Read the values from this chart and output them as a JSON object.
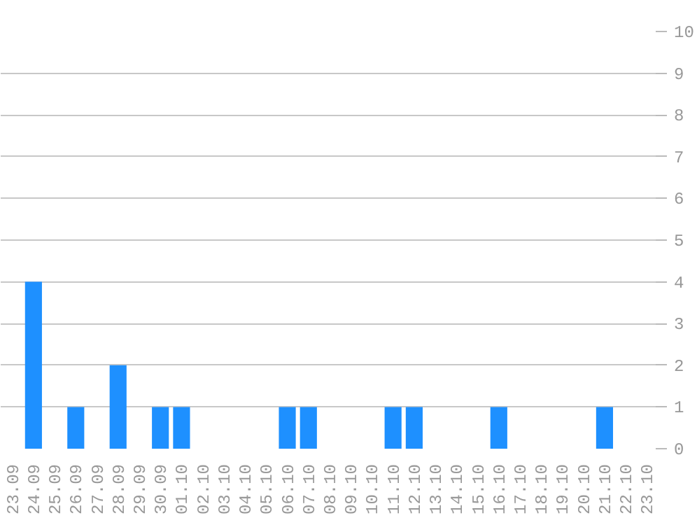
{
  "chart_data": {
    "type": "bar",
    "categories": [
      "23.09",
      "24.09",
      "25.09",
      "26.09",
      "27.09",
      "28.09",
      "29.09",
      "30.09",
      "01.10",
      "02.10",
      "03.10",
      "04.10",
      "05.10",
      "06.10",
      "07.10",
      "08.10",
      "09.10",
      "10.10",
      "11.10",
      "12.10",
      "13.10",
      "14.10",
      "15.10",
      "16.10",
      "17.10",
      "18.10",
      "19.10",
      "20.10",
      "21.10",
      "22.10",
      "23.10"
    ],
    "values": [
      0,
      4,
      0,
      1,
      0,
      2,
      0,
      1,
      1,
      0,
      0,
      0,
      0,
      1,
      1,
      0,
      0,
      0,
      1,
      1,
      0,
      0,
      0,
      1,
      0,
      0,
      0,
      0,
      1,
      0,
      0
    ],
    "color": "#1e90ff",
    "ylim": [
      0,
      10
    ],
    "yticks": [
      0,
      1,
      2,
      3,
      4,
      5,
      6,
      7,
      8,
      9,
      10
    ],
    "grid": "y"
  }
}
